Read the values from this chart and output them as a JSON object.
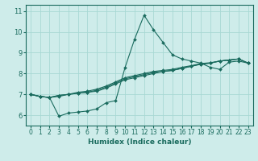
{
  "title": "",
  "xlabel": "Humidex (Indice chaleur)",
  "background_color": "#ceecea",
  "line_color": "#1a6b5e",
  "grid_color": "#a8d8d4",
  "xlim": [
    -0.5,
    23.5
  ],
  "ylim": [
    5.5,
    11.3
  ],
  "xticks": [
    0,
    1,
    2,
    3,
    4,
    5,
    6,
    7,
    8,
    9,
    10,
    11,
    12,
    13,
    14,
    15,
    16,
    17,
    18,
    19,
    20,
    21,
    22,
    23
  ],
  "yticks": [
    6,
    7,
    8,
    9,
    10,
    11
  ],
  "series": [
    {
      "x": [
        0,
        1,
        2,
        3,
        4,
        5,
        6,
        7,
        8,
        9,
        10,
        11,
        12,
        13,
        14,
        15,
        16,
        17,
        18,
        19,
        20,
        21,
        22,
        23
      ],
      "y": [
        7.0,
        6.9,
        6.85,
        6.9,
        7.0,
        7.05,
        7.1,
        7.15,
        7.3,
        7.5,
        7.7,
        7.8,
        7.9,
        8.0,
        8.1,
        8.15,
        8.25,
        8.35,
        8.45,
        8.5,
        8.6,
        8.65,
        8.7,
        8.5
      ]
    },
    {
      "x": [
        0,
        1,
        2,
        3,
        4,
        5,
        6,
        7,
        8,
        9,
        10,
        11,
        12,
        13,
        14,
        15,
        16,
        17,
        18,
        19,
        20,
        21,
        22,
        23
      ],
      "y": [
        7.0,
        6.9,
        6.85,
        6.95,
        7.0,
        7.05,
        7.1,
        7.2,
        7.35,
        7.55,
        7.75,
        7.85,
        7.95,
        8.05,
        8.1,
        8.15,
        8.25,
        8.35,
        8.45,
        8.5,
        8.6,
        8.65,
        8.7,
        8.5
      ]
    },
    {
      "x": [
        0,
        1,
        2,
        3,
        4,
        5,
        6,
        7,
        8,
        9,
        10,
        11,
        12,
        13,
        14,
        15,
        16,
        17,
        18,
        19,
        20,
        21,
        22,
        23
      ],
      "y": [
        7.0,
        6.9,
        6.85,
        6.95,
        7.0,
        7.1,
        7.15,
        7.25,
        7.4,
        7.6,
        7.8,
        7.9,
        8.0,
        8.1,
        8.15,
        8.2,
        8.3,
        8.38,
        8.48,
        8.52,
        8.6,
        8.65,
        8.7,
        8.5
      ]
    },
    {
      "x": [
        0,
        1,
        2,
        3,
        4,
        5,
        6,
        7,
        8,
        9,
        10,
        11,
        12,
        13,
        14,
        15,
        16,
        17,
        18,
        19,
        20,
        21,
        22,
        23
      ],
      "y": [
        7.0,
        6.9,
        6.85,
        5.95,
        6.1,
        6.15,
        6.2,
        6.3,
        6.6,
        6.7,
        8.3,
        9.65,
        10.8,
        10.1,
        9.5,
        8.9,
        8.7,
        8.6,
        8.5,
        8.3,
        8.2,
        8.55,
        8.6,
        8.5
      ]
    }
  ]
}
